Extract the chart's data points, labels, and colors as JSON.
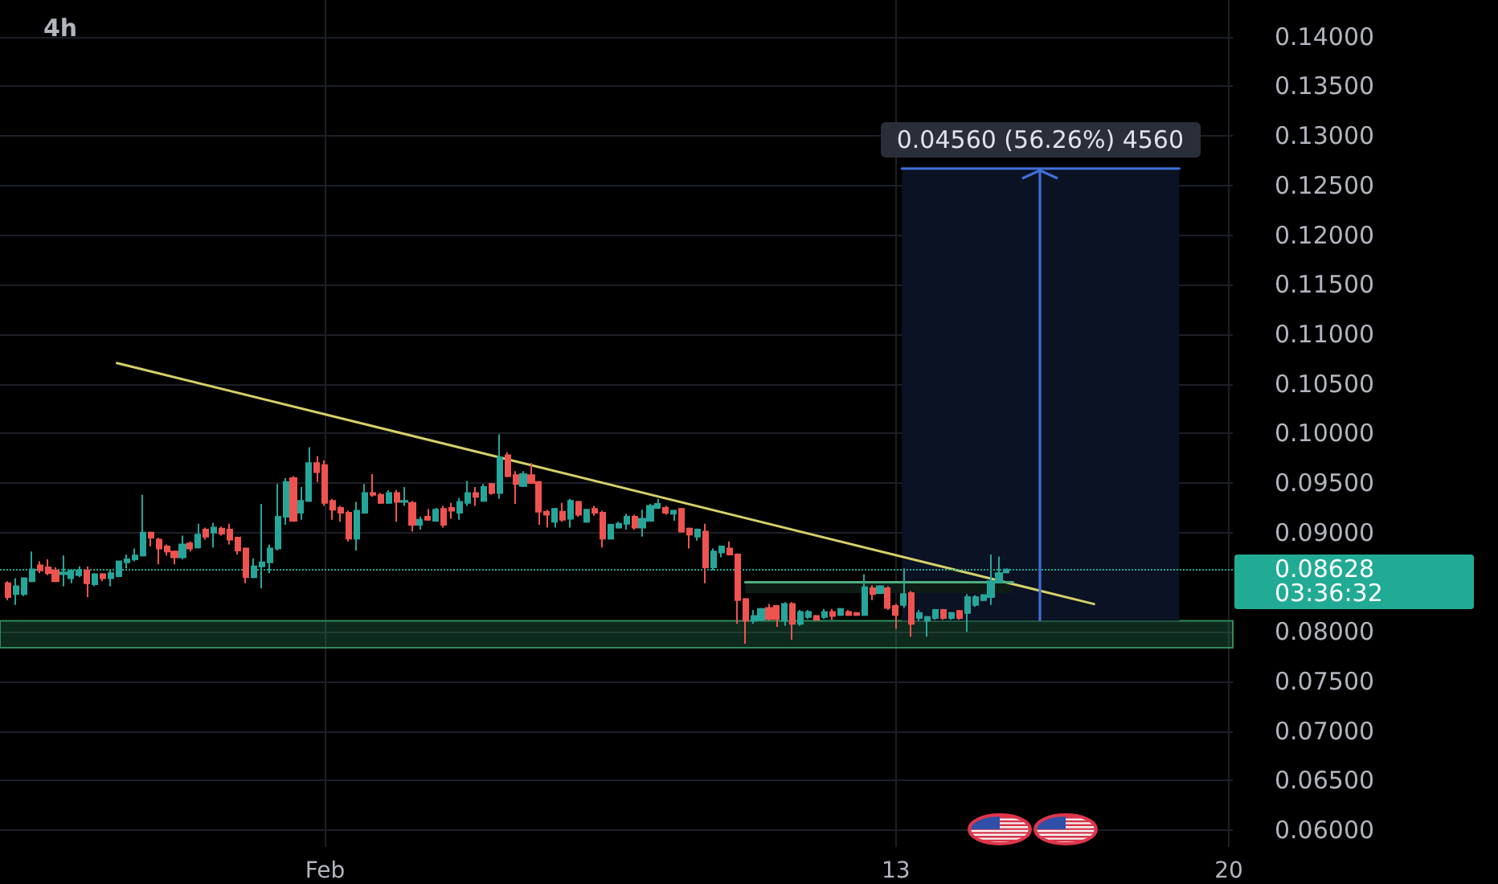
{
  "chart_data": {
    "type": "candlestick",
    "title": "4h",
    "x": [
      "--01-25T08:00",
      "--01-25T12:00",
      "--01-25T16:00",
      "--01-25T20:00",
      "--01-26T00:00",
      "--01-26T04:00",
      "--01-26T08:00",
      "--01-26T12:00",
      "--01-26T16:00",
      "--01-26T20:00",
      "--01-27T00:00",
      "--01-27T04:00",
      "--01-27T08:00",
      "--01-27T12:00",
      "--01-27T16:00",
      "--01-27T20:00",
      "--01-28T00:00",
      "--01-28T04:00",
      "--01-28T08:00",
      "--01-28T12:00",
      "--01-28T16:00",
      "--01-28T20:00",
      "--01-29T00:00",
      "--01-29T04:00",
      "--01-29T08:00",
      "--01-29T12:00",
      "--01-29T16:00",
      "--01-29T20:00",
      "--01-30T00:00",
      "--01-30T04:00",
      "--01-30T08:00",
      "--01-30T12:00",
      "--01-30T16:00",
      "--01-30T20:00",
      "--01-31T00:00",
      "--01-31T04:00",
      "--01-31T08:00",
      "--01-31T12:00",
      "--01-31T16:00",
      "--01-31T20:00",
      "--02-01T00:00",
      "--02-01T04:00",
      "--02-01T08:00",
      "--02-01T12:00",
      "--02-01T16:00",
      "--02-01T20:00",
      "--02-02T00:00",
      "--02-02T04:00",
      "--02-02T08:00",
      "--02-02T12:00",
      "--02-02T16:00",
      "--02-02T20:00",
      "--02-03T00:00",
      "--02-03T04:00",
      "--02-03T08:00",
      "--02-03T12:00",
      "--02-03T16:00",
      "--02-03T20:00",
      "--02-04T00:00",
      "--02-04T04:00",
      "--02-04T08:00",
      "--02-04T12:00",
      "--02-04T16:00",
      "--02-04T20:00",
      "--02-05T00:00",
      "--02-05T04:00",
      "--02-05T08:00",
      "--02-05T12:00",
      "--02-05T16:00",
      "--02-05T20:00",
      "--02-06T00:00",
      "--02-06T04:00",
      "--02-06T08:00",
      "--02-06T12:00",
      "--02-06T16:00",
      "--02-06T20:00",
      "--02-07T00:00",
      "--02-07T04:00",
      "--02-07T08:00",
      "--02-07T12:00",
      "--02-07T16:00",
      "--02-07T20:00",
      "--02-08T00:00",
      "--02-08T04:00",
      "--02-08T08:00",
      "--02-08T12:00",
      "--02-08T16:00",
      "--02-08T20:00",
      "--02-09T00:00",
      "--02-09T04:00",
      "--02-09T08:00",
      "--02-09T12:00",
      "--02-09T16:00",
      "--02-09T20:00",
      "--02-10T00:00",
      "--02-10T04:00",
      "--02-10T08:00",
      "--02-10T12:00",
      "--02-10T16:00",
      "--02-10T20:00",
      "--02-11T00:00",
      "--02-11T04:00",
      "--02-11T08:00",
      "--02-11T12:00",
      "--02-11T16:00",
      "--02-11T20:00",
      "--02-12T00:00",
      "--02-12T04:00",
      "--02-12T08:00",
      "--02-12T12:00",
      "--02-12T16:00",
      "--02-12T20:00",
      "--02-13T00:00",
      "--02-13T04:00",
      "--02-13T08:00",
      "--02-13T12:00",
      "--02-13T16:00",
      "--02-13T20:00",
      "--02-14T00:00",
      "--02-14T04:00",
      "--02-14T08:00",
      "--02-14T12:00",
      "--02-14T16:00",
      "--02-14T20:00",
      "--02-15T00:00",
      "--02-15T04:00",
      "--02-15T08:00"
    ],
    "ohlc": [
      [
        0.0849,
        0.0851,
        0.0832,
        0.0835
      ],
      [
        0.0838,
        0.0854,
        0.0827,
        0.0846
      ],
      [
        0.0838,
        0.0855,
        0.0836,
        0.0854
      ],
      [
        0.0851,
        0.0881,
        0.085,
        0.0863
      ],
      [
        0.0867,
        0.0871,
        0.0859,
        0.0862
      ],
      [
        0.0865,
        0.0873,
        0.0857,
        0.0859
      ],
      [
        0.0862,
        0.0865,
        0.085,
        0.0851
      ],
      [
        0.0858,
        0.0877,
        0.0846,
        0.086
      ],
      [
        0.0854,
        0.0863,
        0.0849,
        0.0862
      ],
      [
        0.0857,
        0.0866,
        0.0855,
        0.0862
      ],
      [
        0.0862,
        0.0866,
        0.0835,
        0.0849
      ],
      [
        0.0848,
        0.0859,
        0.0846,
        0.0858
      ],
      [
        0.0858,
        0.0859,
        0.0851,
        0.0854
      ],
      [
        0.0854,
        0.0862,
        0.0846,
        0.0859
      ],
      [
        0.0856,
        0.0871,
        0.0855,
        0.0871
      ],
      [
        0.087,
        0.0878,
        0.0864,
        0.0873
      ],
      [
        0.0873,
        0.0884,
        0.0871,
        0.0877
      ],
      [
        0.0877,
        0.0938,
        0.0876,
        0.09
      ],
      [
        0.09,
        0.0901,
        0.0886,
        0.0895
      ],
      [
        0.0893,
        0.0895,
        0.0868,
        0.0884
      ],
      [
        0.0886,
        0.0888,
        0.0877,
        0.0881
      ],
      [
        0.0881,
        0.0882,
        0.0868,
        0.0875
      ],
      [
        0.0875,
        0.0897,
        0.0873,
        0.0888
      ],
      [
        0.0889,
        0.0891,
        0.0881,
        0.0884
      ],
      [
        0.0885,
        0.0909,
        0.0884,
        0.0898
      ],
      [
        0.0903,
        0.0905,
        0.0893,
        0.0896
      ],
      [
        0.09,
        0.091,
        0.0885,
        0.0905
      ],
      [
        0.0904,
        0.0906,
        0.0897,
        0.0899
      ],
      [
        0.0903,
        0.0909,
        0.0888,
        0.0893
      ],
      [
        0.0895,
        0.0896,
        0.0878,
        0.0882
      ],
      [
        0.0884,
        0.0885,
        0.0849,
        0.0855
      ],
      [
        0.0855,
        0.0874,
        0.0854,
        0.0866
      ],
      [
        0.0866,
        0.0929,
        0.0844,
        0.087
      ],
      [
        0.087,
        0.0888,
        0.0859,
        0.0884
      ],
      [
        0.0884,
        0.0949,
        0.0882,
        0.0916
      ],
      [
        0.0916,
        0.0955,
        0.0908,
        0.0951
      ],
      [
        0.0955,
        0.0957,
        0.0911,
        0.0912
      ],
      [
        0.092,
        0.0946,
        0.0913,
        0.0932
      ],
      [
        0.0932,
        0.0986,
        0.0931,
        0.097
      ],
      [
        0.097,
        0.0977,
        0.0951,
        0.0961
      ],
      [
        0.0968,
        0.0973,
        0.0927,
        0.093
      ],
      [
        0.0932,
        0.0934,
        0.0913,
        0.0923
      ],
      [
        0.0925,
        0.0927,
        0.0911,
        0.092
      ],
      [
        0.092,
        0.0922,
        0.0891,
        0.0894
      ],
      [
        0.0894,
        0.0931,
        0.0882,
        0.0922
      ],
      [
        0.092,
        0.0949,
        0.0919,
        0.094
      ],
      [
        0.094,
        0.0959,
        0.0936,
        0.0938
      ],
      [
        0.0938,
        0.094,
        0.0929,
        0.093
      ],
      [
        0.093,
        0.0943,
        0.0929,
        0.094
      ],
      [
        0.094,
        0.0943,
        0.0911,
        0.0931
      ],
      [
        0.0931,
        0.0946,
        0.0927,
        0.0932
      ],
      [
        0.093,
        0.0932,
        0.0901,
        0.0908
      ],
      [
        0.0908,
        0.0916,
        0.0903,
        0.0913
      ],
      [
        0.0916,
        0.0924,
        0.0912,
        0.0913
      ],
      [
        0.0912,
        0.0925,
        0.0911,
        0.0923
      ],
      [
        0.0924,
        0.0927,
        0.0905,
        0.0908
      ],
      [
        0.0925,
        0.093,
        0.0914,
        0.0922
      ],
      [
        0.092,
        0.0935,
        0.0913,
        0.0931
      ],
      [
        0.093,
        0.0952,
        0.0927,
        0.094
      ],
      [
        0.094,
        0.0946,
        0.0927,
        0.0936
      ],
      [
        0.0932,
        0.0949,
        0.0931,
        0.0946
      ],
      [
        0.0949,
        0.095,
        0.0938,
        0.094
      ],
      [
        0.094,
        0.0999,
        0.0934,
        0.0976
      ],
      [
        0.0978,
        0.0981,
        0.0956,
        0.0957
      ],
      [
        0.0958,
        0.0962,
        0.0929,
        0.0949
      ],
      [
        0.0947,
        0.0962,
        0.0946,
        0.0959
      ],
      [
        0.0958,
        0.097,
        0.0949,
        0.095
      ],
      [
        0.0951,
        0.0952,
        0.0908,
        0.0921
      ],
      [
        0.0921,
        0.0923,
        0.0905,
        0.0918
      ],
      [
        0.0911,
        0.0925,
        0.0905,
        0.0924
      ],
      [
        0.0921,
        0.093,
        0.0911,
        0.0913
      ],
      [
        0.0914,
        0.0934,
        0.0905,
        0.0932
      ],
      [
        0.0931,
        0.0932,
        0.0916,
        0.0918
      ],
      [
        0.0911,
        0.0924,
        0.091,
        0.0923
      ],
      [
        0.0924,
        0.0927,
        0.0917,
        0.092
      ],
      [
        0.092,
        0.0922,
        0.0885,
        0.0894
      ],
      [
        0.0894,
        0.0909,
        0.0893,
        0.0908
      ],
      [
        0.0905,
        0.0911,
        0.0904,
        0.0909
      ],
      [
        0.0909,
        0.0919,
        0.0903,
        0.0916
      ],
      [
        0.0916,
        0.0918,
        0.0903,
        0.0905
      ],
      [
        0.0905,
        0.0923,
        0.0896,
        0.0914
      ],
      [
        0.0912,
        0.0929,
        0.0912,
        0.0927
      ],
      [
        0.0925,
        0.0934,
        0.0924,
        0.0929
      ],
      [
        0.0925,
        0.0927,
        0.0918,
        0.092
      ],
      [
        0.0919,
        0.0923,
        0.0912,
        0.0922
      ],
      [
        0.0924,
        0.0925,
        0.09,
        0.0901
      ],
      [
        0.0904,
        0.0905,
        0.0884,
        0.0898
      ],
      [
        0.0896,
        0.0904,
        0.0892,
        0.0903
      ],
      [
        0.0901,
        0.0909,
        0.0849,
        0.0865
      ],
      [
        0.0865,
        0.0884,
        0.0862,
        0.0881
      ],
      [
        0.088,
        0.0887,
        0.0875,
        0.0886
      ],
      [
        0.0884,
        0.0891,
        0.0877,
        0.0878
      ],
      [
        0.0878,
        0.0879,
        0.0808,
        0.0832
      ],
      [
        0.0833,
        0.0834,
        0.0788,
        0.0811
      ],
      [
        0.0811,
        0.0822,
        0.0808,
        0.0816
      ],
      [
        0.0812,
        0.0824,
        0.0811,
        0.0823
      ],
      [
        0.0824,
        0.0828,
        0.0811,
        0.0813
      ],
      [
        0.0826,
        0.0827,
        0.0805,
        0.0813
      ],
      [
        0.0811,
        0.083,
        0.0806,
        0.0828
      ],
      [
        0.0828,
        0.083,
        0.0792,
        0.0808
      ],
      [
        0.0808,
        0.0822,
        0.0806,
        0.082
      ],
      [
        0.0815,
        0.0822,
        0.0813,
        0.082
      ],
      [
        0.0816,
        0.0817,
        0.0811,
        0.0812
      ],
      [
        0.0815,
        0.0823,
        0.0813,
        0.082
      ],
      [
        0.082,
        0.0823,
        0.0812,
        0.0816
      ],
      [
        0.0817,
        0.0824,
        0.0816,
        0.0823
      ],
      [
        0.082,
        0.0822,
        0.0816,
        0.0817
      ],
      [
        0.0819,
        0.082,
        0.0816,
        0.0817
      ],
      [
        0.0817,
        0.0858,
        0.0816,
        0.0845
      ],
      [
        0.0844,
        0.0847,
        0.0832,
        0.0838
      ],
      [
        0.0839,
        0.0847,
        0.0838,
        0.0846
      ],
      [
        0.0844,
        0.0846,
        0.0822,
        0.0824
      ],
      [
        0.0826,
        0.0828,
        0.0803,
        0.0817
      ],
      [
        0.0827,
        0.0864,
        0.0824,
        0.0838
      ],
      [
        0.0839,
        0.0841,
        0.0795,
        0.0808
      ],
      [
        0.0814,
        0.0822,
        0.0811,
        0.0819
      ],
      [
        0.0811,
        0.0816,
        0.0795,
        0.0815
      ],
      [
        0.0814,
        0.0823,
        0.0812,
        0.0822
      ],
      [
        0.0822,
        0.0823,
        0.0812,
        0.0814
      ],
      [
        0.0814,
        0.082,
        0.0812,
        0.0819
      ],
      [
        0.0821,
        0.0822,
        0.0812,
        0.0814
      ],
      [
        0.0819,
        0.0838,
        0.08,
        0.0835
      ],
      [
        0.0827,
        0.0837,
        0.0825,
        0.0835
      ],
      [
        0.0832,
        0.0838,
        0.0831,
        0.0837
      ],
      [
        0.0835,
        0.0878,
        0.0827,
        0.0851
      ],
      [
        0.085,
        0.0876,
        0.0849,
        0.0859
      ],
      [
        0.086,
        0.0864,
        0.0859,
        0.08628
      ]
    ],
    "colors": [
      "#ef5350",
      "#26a69a",
      "#26a69a",
      "#26a69a",
      "#ef5350",
      "#ef5350",
      "#ef5350",
      "#26a69a",
      "#26a69a",
      "#26a69a",
      "#ef5350",
      "#26a69a",
      "#ef5350",
      "#26a69a",
      "#26a69a",
      "#26a69a",
      "#26a69a",
      "#26a69a",
      "#ef5350",
      "#ef5350",
      "#ef5350",
      "#ef5350",
      "#26a69a",
      "#ef5350",
      "#26a69a",
      "#ef5350",
      "#26a69a",
      "#ef5350",
      "#ef5350",
      "#ef5350",
      "#ef5350",
      "#26a69a",
      "#26a69a",
      "#26a69a",
      "#26a69a",
      "#26a69a",
      "#ef5350",
      "#26a69a",
      "#26a69a",
      "#ef5350",
      "#ef5350",
      "#ef5350",
      "#ef5350",
      "#ef5350",
      "#26a69a",
      "#26a69a",
      "#ef5350",
      "#ef5350",
      "#26a69a",
      "#ef5350",
      "#26a69a",
      "#ef5350",
      "#26a69a",
      "#ef5350",
      "#26a69a",
      "#ef5350",
      "#ef5350",
      "#26a69a",
      "#26a69a",
      "#ef5350",
      "#26a69a",
      "#ef5350",
      "#26a69a",
      "#ef5350",
      "#ef5350",
      "#26a69a",
      "#ef5350",
      "#ef5350",
      "#ef5350",
      "#26a69a",
      "#ef5350",
      "#26a69a",
      "#ef5350",
      "#26a69a",
      "#ef5350",
      "#ef5350",
      "#26a69a",
      "#26a69a",
      "#26a69a",
      "#ef5350",
      "#26a69a",
      "#26a69a",
      "#26a69a",
      "#ef5350",
      "#26a69a",
      "#ef5350",
      "#ef5350",
      "#26a69a",
      "#ef5350",
      "#26a69a",
      "#26a69a",
      "#ef5350",
      "#ef5350",
      "#ef5350",
      "#26a69a",
      "#26a69a",
      "#ef5350",
      "#ef5350",
      "#26a69a",
      "#ef5350",
      "#26a69a",
      "#26a69a",
      "#ef5350",
      "#26a69a",
      "#ef5350",
      "#26a69a",
      "#ef5350",
      "#ef5350",
      "#26a69a",
      "#ef5350",
      "#26a69a",
      "#ef5350",
      "#ef5350",
      "#26a69a",
      "#ef5350",
      "#26a69a",
      "#26a69a",
      "#26a69a",
      "#ef5350",
      "#26a69a",
      "#ef5350",
      "#26a69a",
      "#26a69a",
      "#26a69a",
      "#26a69a",
      "#26a69a",
      "#26a69a"
    ],
    "series": [
      {
        "type": "line",
        "x": [
          "--01-27T15:00",
          "--02-17T04:00"
        ],
        "values": [
          0.1071,
          0.0828
        ],
        "color": "#d6d06a"
      },
      {
        "type": "line",
        "x": [
          "--02-09T20:00",
          "--02-15T11:00"
        ],
        "values": [
          0.085,
          0.085
        ],
        "lower": [
          0.0839,
          0.0839
        ],
        "upper": [
          0.085,
          0.085
        ],
        "color": "#4fae7f"
      },
      {
        "type": "line",
        "x": [
          "--02-13T03:00",
          "--02-18T23:00"
        ],
        "values": [
          0.1267,
          0.1267
        ],
        "lower": [
          0.0811,
          0.0811
        ],
        "upper": [
          0.1267,
          0.1267
        ],
        "color": "#3f6fd8"
      }
    ],
    "xlim": [
      "--01-25T04:00",
      "--02-20T02:00"
    ],
    "xticks": [
      {
        "value": "--02-01",
        "label": "Feb"
      },
      {
        "value": "--02-13",
        "label": "13"
      },
      {
        "value": "--02-20",
        "label": "20"
      }
    ],
    "ylim": [
      0.0583,
      0.1437
    ],
    "yticks": [
      {
        "value": 0.06,
        "label": "0.06000"
      },
      {
        "value": 0.065,
        "label": "0.06500"
      },
      {
        "value": 0.07,
        "label": "0.07000"
      },
      {
        "value": 0.075,
        "label": "0.07500"
      },
      {
        "value": 0.08,
        "label": "0.08000"
      },
      {
        "value": 0.09,
        "label": "0.09000"
      },
      {
        "value": 0.095,
        "label": "0.09500"
      },
      {
        "value": 0.1,
        "label": "0.10000"
      },
      {
        "value": 0.105,
        "label": "0.10500"
      },
      {
        "value": 0.11,
        "label": "0.11000"
      },
      {
        "value": 0.115,
        "label": "0.11500"
      },
      {
        "value": 0.12,
        "label": "0.12000"
      },
      {
        "value": 0.125,
        "label": "0.12500"
      },
      {
        "value": 0.13,
        "label": "0.13000"
      },
      {
        "value": 0.135,
        "label": "0.13500"
      },
      {
        "value": 0.14,
        "label": "0.14000"
      }
    ],
    "ref_lines": [
      {
        "axis": "y",
        "value": 0.08628,
        "label": "0.08628",
        "color": "#22ab94",
        "line_style": "dotted"
      }
    ],
    "bands": [
      {
        "axis": "y",
        "from": 0.0784,
        "to": 0.0811,
        "color": "#2e8b5e"
      }
    ],
    "annotations": [
      {
        "text": "0.04560 (56.26%) 4560",
        "x": "--02-16T01:00",
        "y": 0.1267
      },
      "03:36:32"
    ],
    "grid": true
  }
}
